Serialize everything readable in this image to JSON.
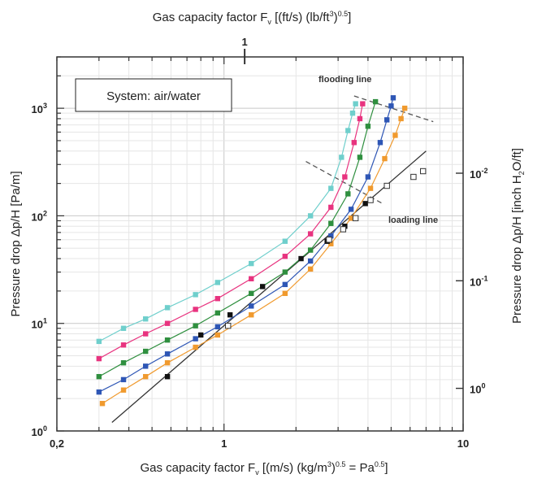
{
  "chart_data": {
    "type": "scatter",
    "x_scale": "log",
    "y_scale": "log",
    "xlim": [
      0.2,
      10
    ],
    "ylim": [
      1,
      3000
    ],
    "x_ticks": [
      {
        "value": 0.2,
        "label": "0,2"
      },
      {
        "value": 1,
        "label": "1"
      },
      {
        "value": 10,
        "label": "10"
      }
    ],
    "y_ticks": [
      {
        "value": 1,
        "base": "10",
        "exp": "0"
      },
      {
        "value": 10,
        "base": "10",
        "exp": "1"
      },
      {
        "value": 100,
        "base": "10",
        "exp": "2"
      },
      {
        "value": 1000,
        "base": "10",
        "exp": "3"
      }
    ],
    "right_ticks": [
      {
        "value": 2.49,
        "base": "10",
        "exp": "0"
      },
      {
        "value": 24.9,
        "base": "10",
        "exp": "-1"
      },
      {
        "value": 249,
        "base": "10",
        "exp": "-2"
      }
    ],
    "top_ticks": [
      {
        "value": 1.22,
        "label": "1"
      }
    ],
    "xlabel": {
      "main": "Gas capacity factor  F",
      "sub": "v",
      "rest": " [(m/s) (kg/m",
      "sup1": "3",
      "rest2": ")",
      "sup2": "0.5",
      "rest3": " = Pa",
      "sup3": "0.5",
      "rest4": "]"
    },
    "ylabel": {
      "text": "Pressure drop  Δp/H [Pa/m]"
    },
    "top_label": {
      "main": "Gas capacity factor  F",
      "sub": "v",
      "rest": " [(ft/s) (lb/ft",
      "sup1": "3",
      "rest2": ")",
      "sup2": "0.5",
      "rest3": "]"
    },
    "right_label": {
      "a": "Pressure drop  Δp/H [inch H",
      "sub": "2",
      "b": "O/ft]"
    },
    "system_label": "System: air/water",
    "annotations": {
      "flooding": "flooding line",
      "loading": "loading line"
    },
    "grid": true,
    "dry_line": {
      "x": [
        0.34,
        7.0
      ],
      "y": [
        1.2,
        400
      ]
    },
    "flooding_line": {
      "x": [
        3.5,
        7.5
      ],
      "y": [
        1300,
        750
      ]
    },
    "loading_line": {
      "x": [
        2.2,
        4.6
      ],
      "y": [
        320,
        130
      ]
    },
    "series": [
      {
        "color": "#6fcfcc",
        "x": [
          0.3,
          0.38,
          0.47,
          0.58,
          0.76,
          0.94,
          1.3,
          1.8,
          2.3,
          2.8,
          3.1,
          3.3,
          3.45,
          3.55
        ],
        "y": [
          6.8,
          9.0,
          11.0,
          14.0,
          18.5,
          24.0,
          36.0,
          58.0,
          100.0,
          180.0,
          350.0,
          620.0,
          900.0,
          1100.0
        ]
      },
      {
        "color": "#e8337f",
        "x": [
          0.3,
          0.38,
          0.47,
          0.58,
          0.76,
          0.94,
          1.3,
          1.8,
          2.3,
          2.8,
          3.2,
          3.5,
          3.7,
          3.8
        ],
        "y": [
          4.7,
          6.3,
          8.0,
          10.0,
          13.5,
          17.0,
          26.0,
          42.0,
          68.0,
          120.0,
          230.0,
          480.0,
          800.0,
          1100.0
        ]
      },
      {
        "color": "#2f8f3f",
        "x": [
          0.3,
          0.38,
          0.47,
          0.58,
          0.76,
          0.94,
          1.3,
          1.8,
          2.3,
          2.8,
          3.3,
          3.7,
          4.0,
          4.3
        ],
        "y": [
          3.2,
          4.3,
          5.5,
          7.0,
          9.5,
          12.5,
          19.0,
          30.0,
          48.0,
          85.0,
          160.0,
          350.0,
          680.0,
          1150.0
        ]
      },
      {
        "color": "#2e56b5",
        "x": [
          0.3,
          0.38,
          0.47,
          0.58,
          0.76,
          0.94,
          1.3,
          1.8,
          2.3,
          2.8,
          3.4,
          4.0,
          4.5,
          4.8,
          5.0,
          5.1
        ],
        "y": [
          2.3,
          3.0,
          4.0,
          5.2,
          7.2,
          9.3,
          14.5,
          23.0,
          38.0,
          65.0,
          115.0,
          230.0,
          480.0,
          780.0,
          1050.0,
          1250.0
        ]
      },
      {
        "color": "#f09a2e",
        "x": [
          0.31,
          0.38,
          0.47,
          0.58,
          0.76,
          0.94,
          1.3,
          1.8,
          2.3,
          2.8,
          3.4,
          4.1,
          4.7,
          5.2,
          5.5,
          5.7
        ],
        "y": [
          1.8,
          2.4,
          3.2,
          4.3,
          6.0,
          7.8,
          12.0,
          19.0,
          32.0,
          55.0,
          95.0,
          180.0,
          340.0,
          560.0,
          800.0,
          1000.0
        ]
      },
      {
        "color": "#111111",
        "x": [
          0.58,
          0.8,
          1.06,
          1.45,
          2.1,
          2.7,
          3.2,
          3.9
        ],
        "y": [
          3.2,
          7.8,
          12.0,
          22.0,
          40.0,
          58.0,
          80.0,
          130.0
        ]
      }
    ],
    "open_points": {
      "x": [
        1.04,
        2.75,
        3.15,
        3.55,
        4.1,
        4.8,
        6.2,
        6.8
      ],
      "y": [
        9.5,
        60.0,
        75.0,
        95.0,
        140.0,
        190.0,
        230.0,
        260.0
      ]
    }
  }
}
